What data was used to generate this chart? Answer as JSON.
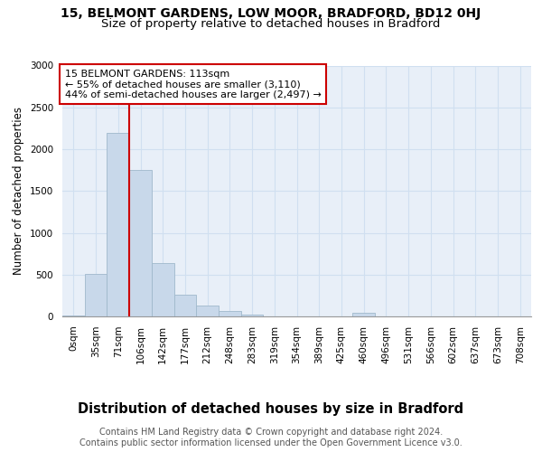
{
  "title1": "15, BELMONT GARDENS, LOW MOOR, BRADFORD, BD12 0HJ",
  "title2": "Size of property relative to detached houses in Bradford",
  "xlabel": "Distribution of detached houses by size in Bradford",
  "ylabel": "Number of detached properties",
  "bar_labels": [
    "0sqm",
    "35sqm",
    "71sqm",
    "106sqm",
    "142sqm",
    "177sqm",
    "212sqm",
    "248sqm",
    "283sqm",
    "319sqm",
    "354sqm",
    "389sqm",
    "425sqm",
    "460sqm",
    "496sqm",
    "531sqm",
    "566sqm",
    "602sqm",
    "637sqm",
    "673sqm",
    "708sqm"
  ],
  "bar_values": [
    10,
    510,
    2200,
    1750,
    640,
    260,
    130,
    60,
    20,
    5,
    5,
    5,
    5,
    40,
    5,
    0,
    0,
    0,
    0,
    0,
    0
  ],
  "bar_color": "#c8d8ea",
  "bar_edge_color": "#a0b8cc",
  "vline_color": "#cc0000",
  "annotation_text": "15 BELMONT GARDENS: 113sqm\n← 55% of detached houses are smaller (3,110)\n44% of semi-detached houses are larger (2,497) →",
  "annotation_box_facecolor": "#ffffff",
  "annotation_box_edgecolor": "#cc0000",
  "ylim": [
    0,
    3000
  ],
  "yticks": [
    0,
    500,
    1000,
    1500,
    2000,
    2500,
    3000
  ],
  "grid_color": "#d0dff0",
  "bg_color": "#e8eff8",
  "footer_text": "Contains HM Land Registry data © Crown copyright and database right 2024.\nContains public sector information licensed under the Open Government Licence v3.0.",
  "vline_bin_index": 3,
  "title1_fontsize": 10,
  "title2_fontsize": 9.5,
  "xlabel_fontsize": 10.5,
  "ylabel_fontsize": 8.5,
  "tick_fontsize": 7.5,
  "annotation_fontsize": 8,
  "footer_fontsize": 7
}
